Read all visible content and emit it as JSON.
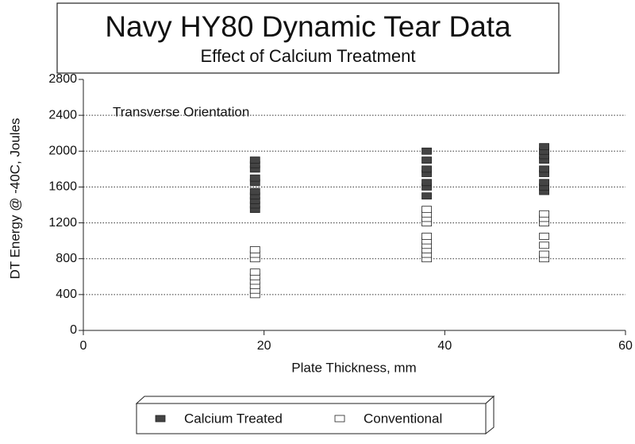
{
  "chart_data": {
    "type": "scatter",
    "title": "Navy HY80 Dynamic Tear Data",
    "subtitle": "Effect of Calcium Treatment",
    "annotation": "Transverse Orientation",
    "x_label": "Plate Thickness, mm",
    "y_label": "DT Energy @ -40C, Joules",
    "xlim": [
      0,
      60
    ],
    "xticks": [
      0,
      20,
      40,
      60
    ],
    "ylim": [
      0,
      2800
    ],
    "yticks": [
      0,
      400,
      800,
      1200,
      1600,
      2000,
      2400,
      2800
    ],
    "grid": true,
    "legend": "bottom",
    "series": [
      {
        "name": "Calcium Treated",
        "color": "#444444",
        "x": [
          19,
          19,
          19,
          19,
          19,
          19,
          19,
          19,
          19,
          19,
          38,
          38,
          38,
          38,
          38,
          38,
          38,
          51,
          51,
          51,
          51,
          51,
          51,
          51,
          51,
          51
        ],
        "values": [
          1350,
          1400,
          1450,
          1500,
          1550,
          1650,
          1700,
          1800,
          1850,
          1900,
          1500,
          1600,
          1650,
          1750,
          1800,
          1900,
          2000,
          1550,
          1600,
          1650,
          1750,
          1800,
          1900,
          1950,
          2000,
          2050
        ]
      },
      {
        "name": "Conventional",
        "color": "#ffffff",
        "x": [
          19,
          19,
          19,
          19,
          19,
          19,
          19,
          19,
          19,
          38,
          38,
          38,
          38,
          38,
          38,
          38,
          38,
          38,
          38,
          51,
          51,
          51,
          51,
          51,
          51,
          51
        ],
        "values": [
          400,
          450,
          500,
          550,
          600,
          650,
          800,
          850,
          900,
          800,
          850,
          900,
          950,
          1000,
          1050,
          1200,
          1250,
          1300,
          1350,
          800,
          850,
          950,
          1050,
          1200,
          1250,
          1300
        ]
      }
    ]
  }
}
